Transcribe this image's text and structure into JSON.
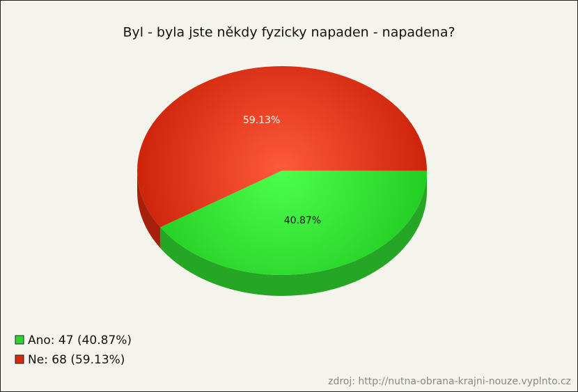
{
  "chart_data": {
    "type": "pie",
    "title": "Byl - byla jste někdy fyzicky napaden - napadena?",
    "categories": [
      "Ano: 47 (40.87%)",
      "Ne: 68 (59.13%)"
    ],
    "values": [
      40.87,
      59.13
    ],
    "value_labels": [
      "40.87%",
      "59.13%"
    ],
    "colors": [
      "#2fd62f",
      "#d42a0e"
    ],
    "legend": "bottom-left",
    "source": "zdroj: http://nutna-obrana-krajni-nouze.vyplnto.cz"
  }
}
